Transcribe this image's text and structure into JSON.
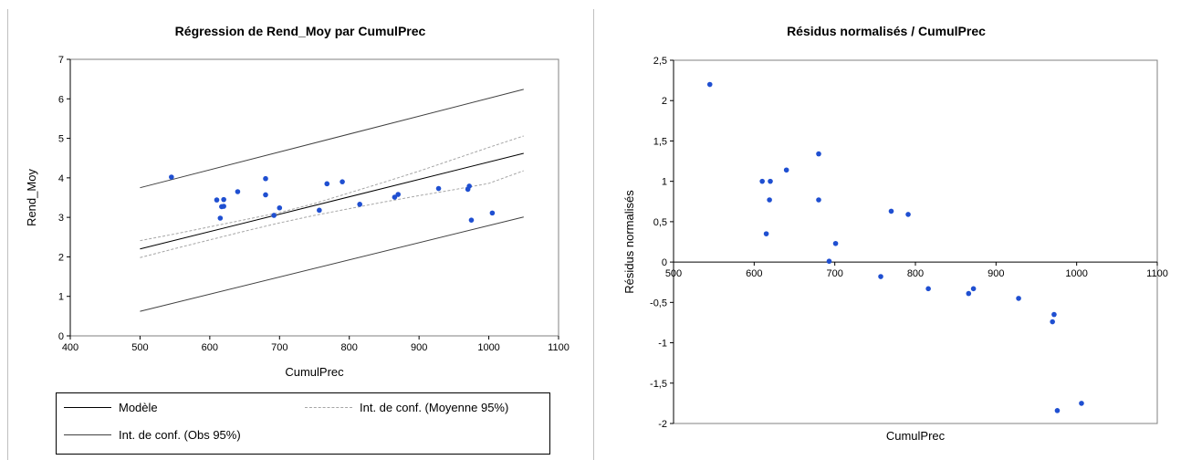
{
  "chart_data": [
    {
      "type": "scatter",
      "title": "Régression de Rend_Moy par CumulPrec",
      "xlabel": "CumulPrec",
      "ylabel": "Rend_Moy",
      "xlim": [
        400,
        1100
      ],
      "ylim": [
        0,
        7
      ],
      "xticks": [
        "400",
        "500",
        "600",
        "700",
        "800",
        "900",
        "1000",
        "1100"
      ],
      "yticks": [
        "0",
        "1",
        "2",
        "3",
        "4",
        "5",
        "6",
        "7"
      ],
      "grid": false,
      "legend_position": "bottom",
      "series": [
        {
          "name": "Modèle",
          "kind": "line",
          "color": "#000000",
          "x": [
            500,
            1050
          ],
          "y": [
            2.2,
            4.62
          ]
        },
        {
          "name": "Int. de conf. (Moyenne 95%)",
          "kind": "line-dashed",
          "color": "#a6a6a6",
          "x": [
            500,
            550,
            600,
            650,
            700,
            750,
            800,
            850,
            900,
            950,
            1000,
            1050
          ],
          "upper": [
            2.41,
            2.58,
            2.76,
            2.94,
            3.12,
            3.35,
            3.62,
            3.89,
            4.17,
            4.47,
            4.77,
            5.06
          ],
          "lower": [
            1.98,
            2.21,
            2.43,
            2.65,
            2.86,
            3.05,
            3.22,
            3.39,
            3.55,
            3.7,
            3.86,
            4.18
          ]
        },
        {
          "name": "Int. de conf. (Obs 95%)",
          "kind": "line",
          "color": "#404040",
          "x": [
            500,
            1050
          ],
          "upper": [
            3.75,
            6.24
          ],
          "lower": [
            0.62,
            3.01
          ]
        },
        {
          "kind": "points",
          "color": "#1f4fd1",
          "x": [
            545,
            610,
            615,
            617,
            620,
            620,
            640,
            680,
            680,
            692,
            700,
            757,
            768,
            790,
            815,
            865,
            870,
            928,
            970,
            972,
            975,
            1005
          ],
          "y": [
            4.02,
            3.44,
            2.98,
            3.27,
            3.45,
            3.28,
            3.65,
            3.98,
            3.57,
            3.05,
            3.24,
            3.18,
            3.85,
            3.9,
            3.33,
            3.51,
            3.58,
            3.73,
            3.71,
            3.79,
            2.93,
            3.11
          ]
        }
      ]
    },
    {
      "type": "scatter",
      "title": "Résidus normalisés / CumulPrec",
      "xlabel": "CumulPrec",
      "ylabel": "Résidus normalisés",
      "xlim": [
        500,
        1100
      ],
      "ylim": [
        -2,
        2.5
      ],
      "xticks": [
        "500",
        "600",
        "700",
        "800",
        "900",
        "1000",
        "1100"
      ],
      "yticks": [
        "-2",
        "-1,5",
        "-1",
        "-0,5",
        "0",
        "0,5",
        "1",
        "1,5",
        "2",
        "2,5"
      ],
      "grid": false,
      "series": [
        {
          "kind": "points",
          "color": "#1f4fd1",
          "x": [
            545,
            610,
            615,
            619,
            620,
            640,
            680,
            680,
            693,
            701,
            757,
            770,
            791,
            816,
            866,
            872,
            928,
            970,
            972,
            976,
            1006
          ],
          "y": [
            2.2,
            1.0,
            0.35,
            0.77,
            1.0,
            1.14,
            1.34,
            0.77,
            0.01,
            0.23,
            -0.18,
            0.63,
            0.59,
            -0.33,
            -0.39,
            -0.33,
            -0.45,
            -0.74,
            -0.65,
            -1.84,
            -1.75
          ]
        }
      ]
    }
  ],
  "legend": {
    "model": "Modèle",
    "mean_ci": "Int. de conf. (Moyenne 95%)",
    "obs_ci": "Int. de conf. (Obs 95%)"
  }
}
